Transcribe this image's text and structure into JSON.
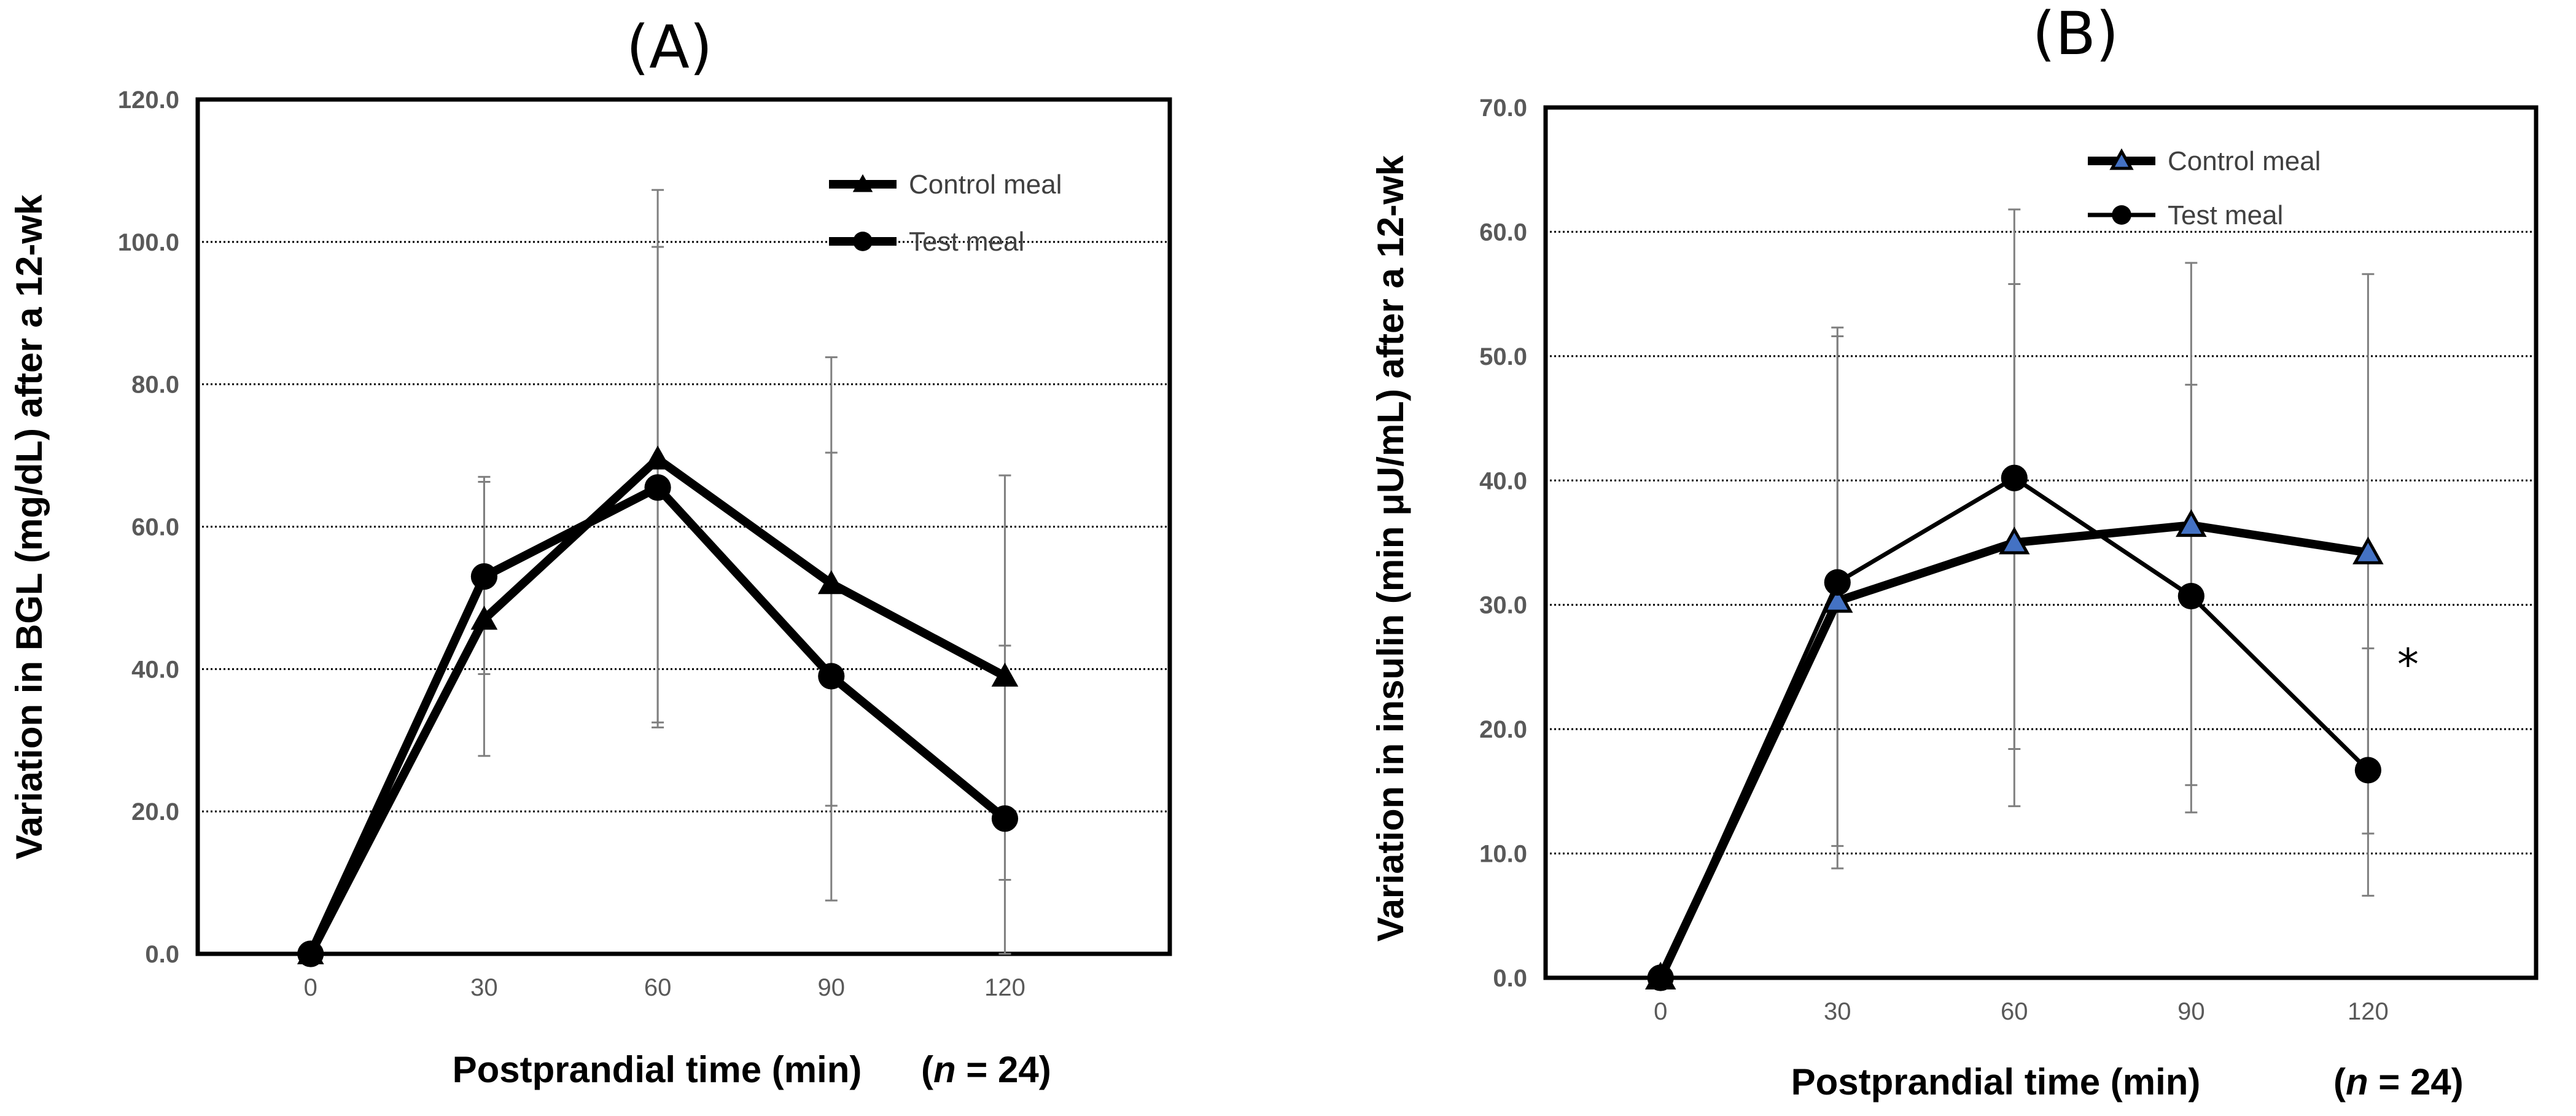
{
  "chart_data": [
    {
      "panel": "(A)",
      "type": "line",
      "title": "(A)",
      "ylabel": "Variation in BGL (mg/dL) after a 12-wk",
      "xlabel": "Postprandial time (min)",
      "n_note": {
        "open": "(",
        "italic": "n",
        "rest": " = 24)"
      },
      "categories": [
        "0",
        "30",
        "60",
        "90",
        "120"
      ],
      "x": [
        0,
        30,
        60,
        90,
        120
      ],
      "ylim": [
        0,
        120
      ],
      "yticks": [
        "0.0",
        "20.0",
        "40.0",
        "60.0",
        "80.0",
        "100.0",
        "120.0"
      ],
      "grid": "horizontal dotted",
      "legend_position": "top-right",
      "series": [
        {
          "name": "Control meal",
          "marker": "triangle",
          "color": "#000000",
          "values": [
            0,
            47,
            69.5,
            52,
            39
          ],
          "err_low": [
            0,
            27.8,
            31.8,
            20.8,
            10.4
          ],
          "err_high": [
            0,
            66.3,
            107.3,
            83.8,
            67.2
          ]
        },
        {
          "name": "Test meal",
          "marker": "circle",
          "color": "#000000",
          "values": [
            0,
            53,
            65.5,
            39,
            19
          ],
          "err_low": [
            0,
            39.3,
            32.5,
            7.5,
            0
          ],
          "err_high": [
            0,
            67.0,
            99.3,
            70.4,
            43.3
          ]
        }
      ]
    },
    {
      "panel": "(B)",
      "type": "line",
      "title": "(B)",
      "ylabel": "Variation in insulin (min μU/mL) after a 12-wk",
      "xlabel": "Postprandial time (min)",
      "n_note": {
        "open": "(",
        "italic": "n",
        "rest": " = 24)"
      },
      "categories": [
        "0",
        "30",
        "60",
        "90",
        "120"
      ],
      "x": [
        0,
        30,
        60,
        90,
        120
      ],
      "ylim": [
        0,
        70
      ],
      "yticks": [
        "0.0",
        "10.0",
        "20.0",
        "30.0",
        "40.0",
        "50.0",
        "60.0",
        "70.0"
      ],
      "grid": "horizontal dotted",
      "legend_position": "top-right",
      "annotation": "*",
      "series": [
        {
          "name": "Control meal",
          "marker": "triangle",
          "color": "#000000",
          "marker_fill": "#4472c4",
          "values": [
            0,
            30.3,
            35,
            36.4,
            34.2
          ],
          "err_low": [
            0,
            8.8,
            13.8,
            15.5,
            11.6
          ],
          "err_high": [
            0,
            52.3,
            55.8,
            47.7,
            56.6
          ]
        },
        {
          "name": "Test meal",
          "marker": "circle",
          "color": "#000000",
          "values": [
            0,
            31.8,
            40.2,
            30.7,
            16.7
          ],
          "err_low": [
            0,
            10.6,
            18.4,
            13.3,
            6.6
          ],
          "err_high": [
            0,
            51.6,
            61.8,
            57.5,
            26.5
          ]
        }
      ]
    }
  ]
}
